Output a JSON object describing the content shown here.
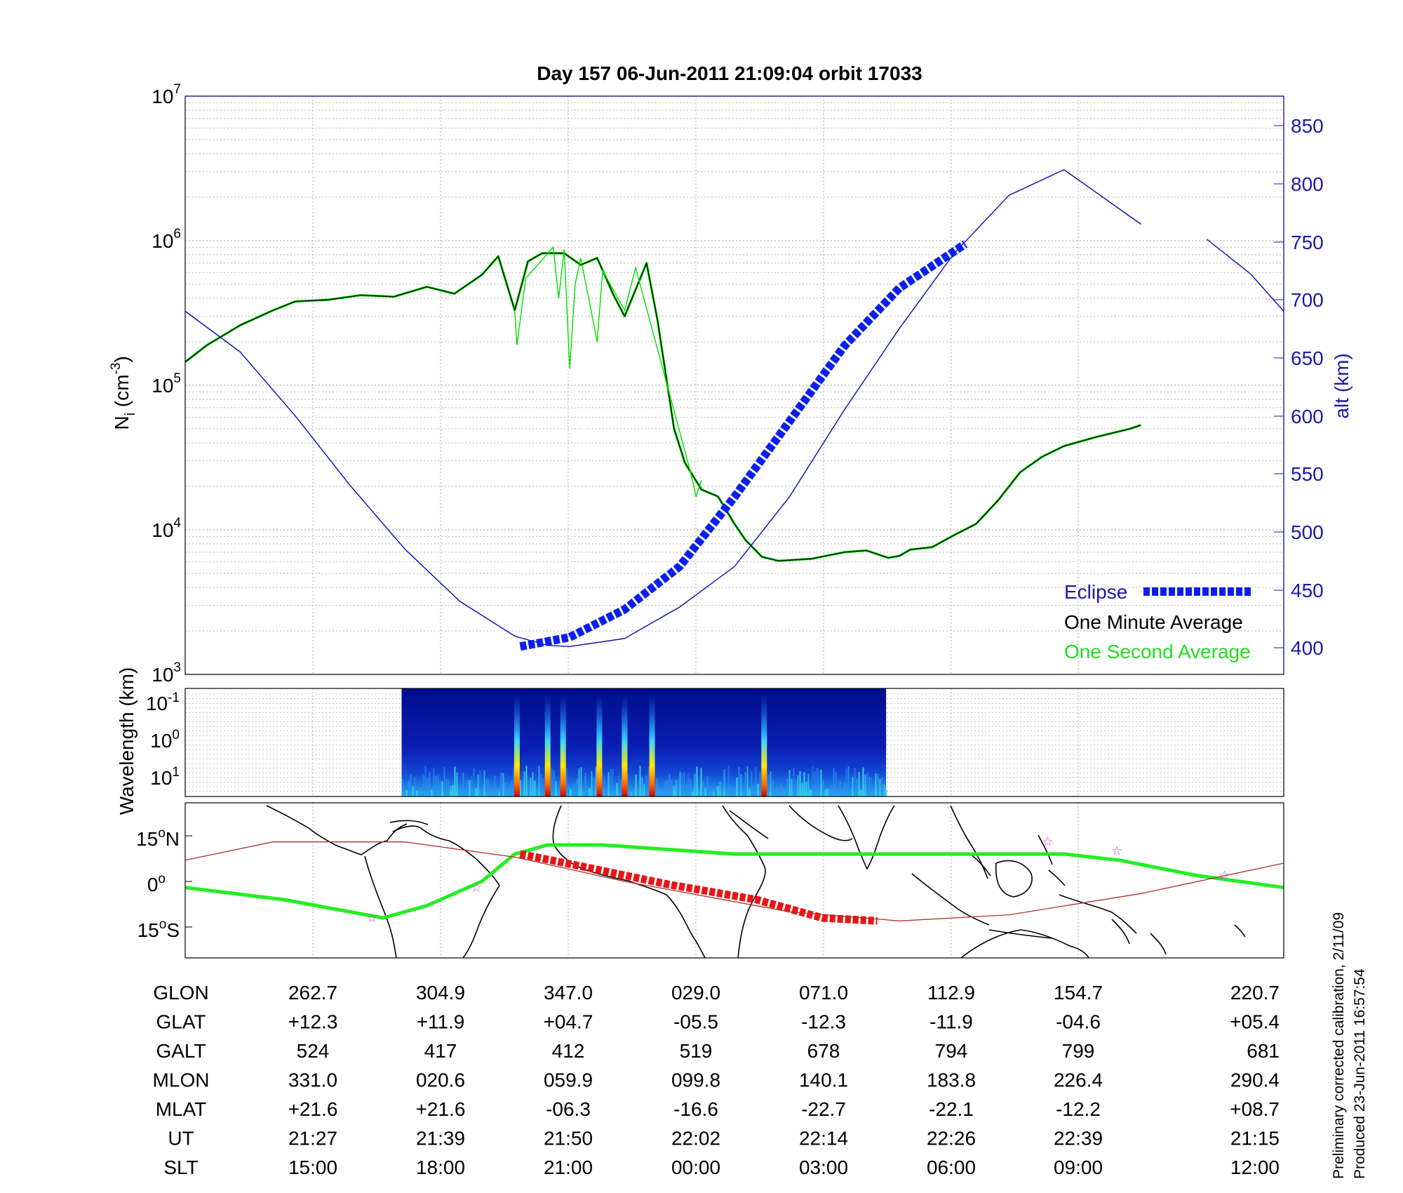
{
  "title": "Day 157  06-Jun-2011 21:09:04   orbit 17033",
  "colors": {
    "density_minute": "#000000",
    "density_second": "#00dd00",
    "altitude": "#0b0bb0",
    "eclipse": "#0a1ef0",
    "map_orbit": "#22ee22",
    "map_eclipse": "#ee1111",
    "map_magnetic_equator": "#b03030",
    "map_marker": "#cc44cc"
  },
  "top_panel": {
    "ylabel": "N",
    "ylabel_sub": "i",
    "ylabel_unit": "(cm",
    "ylabel_unit_sup": "-3",
    "ylabel_unit_close": ")",
    "y_ticks": [
      {
        "base": "10",
        "exp": "7"
      },
      {
        "base": "10",
        "exp": "6"
      },
      {
        "base": "10",
        "exp": "5"
      },
      {
        "base": "10",
        "exp": "4"
      },
      {
        "base": "10",
        "exp": "3"
      }
    ],
    "y2label": "alt (km)",
    "y2_ticks": [
      "850",
      "800",
      "750",
      "700",
      "650",
      "600",
      "550",
      "500",
      "450",
      "400"
    ]
  },
  "legend": {
    "eclipse": "Eclipse",
    "minute": "One Minute Average",
    "second": "One Second Average"
  },
  "spectrogram": {
    "ylabel": "Wavelength (km)",
    "y_ticks": [
      {
        "base": "10",
        "exp": "-1"
      },
      {
        "base": "10",
        "exp": "0"
      },
      {
        "base": "10",
        "exp": "1"
      }
    ]
  },
  "map_panel": {
    "lat_ticks": [
      {
        "value": "15",
        "deg": "o",
        "hemi": "N"
      },
      {
        "value": "0",
        "deg": "o",
        "hemi": ""
      },
      {
        "value": "15",
        "deg": "o",
        "hemi": "S"
      }
    ]
  },
  "table": {
    "row_labels": [
      "GLON",
      "GLAT",
      "GALT",
      "MLON",
      "MLAT",
      "UT",
      "SLT"
    ],
    "columns": [
      [
        "262.7",
        "+12.3",
        "524",
        "331.0",
        "+21.6",
        "21:27",
        "15:00"
      ],
      [
        "304.9",
        "+11.9",
        "417",
        "020.6",
        "+21.6",
        "21:39",
        "18:00"
      ],
      [
        "347.0",
        "+04.7",
        "412",
        "059.9",
        "-06.3",
        "21:50",
        "21:00"
      ],
      [
        "029.0",
        "-05.5",
        "519",
        "099.8",
        "-16.6",
        "22:02",
        "00:00"
      ],
      [
        "071.0",
        "-12.3",
        "678",
        "140.1",
        "-22.7",
        "22:14",
        "03:00"
      ],
      [
        "112.9",
        "-11.9",
        "794",
        "183.8",
        "-22.1",
        "22:26",
        "06:00"
      ],
      [
        "154.7",
        "-04.6",
        "799",
        "226.4",
        "-12.2",
        "22:39",
        "09:00"
      ],
      [
        "220.7",
        "+05.4",
        "681",
        "290.4",
        "+08.7",
        "21:15",
        "12:00"
      ]
    ]
  },
  "footnote_1": "Preliminary corrected calibration, 2/11/09",
  "footnote_2": "Produced 23-Jun-2011 16:57:54",
  "chart_data": [
    {
      "type": "line",
      "title": "Day 157  06-Jun-2011 21:09:04   orbit 17033",
      "xlabel": "",
      "ylabel": "Ni (cm-3)",
      "y_scale": "log",
      "ylim": [
        1000,
        10000000
      ],
      "x_unit": "fraction of orbit plot width",
      "xlim": [
        0,
        1
      ],
      "grid": true,
      "legend_position": "bottom-right",
      "series": [
        {
          "name": "One Minute Average",
          "axis": "left",
          "x": [
            0.0,
            0.02,
            0.05,
            0.08,
            0.1,
            0.13,
            0.16,
            0.19,
            0.22,
            0.245,
            0.27,
            0.285,
            0.3,
            0.312,
            0.325,
            0.345,
            0.36,
            0.375,
            0.39,
            0.4,
            0.42,
            0.43,
            0.445,
            0.455,
            0.47,
            0.485,
            0.5,
            0.51,
            0.525,
            0.54,
            0.57,
            0.6,
            0.62,
            0.64,
            0.65,
            0.66,
            0.68,
            0.7,
            0.72,
            0.74,
            0.76,
            0.78,
            0.8,
            0.83,
            0.86,
            0.87
          ],
          "y": [
            145000,
            190000,
            260000,
            330000,
            380000,
            390000,
            420000,
            410000,
            480000,
            430000,
            580000,
            780000,
            330000,
            720000,
            820000,
            820000,
            680000,
            760000,
            420000,
            300000,
            700000,
            280000,
            50000,
            29000,
            19000,
            17000,
            11000,
            8500,
            6500,
            6100,
            6300,
            7000,
            7200,
            6400,
            6600,
            7300,
            7600,
            9200,
            11000,
            16000,
            25000,
            32000,
            38000,
            44000,
            50000,
            53000
          ]
        },
        {
          "name": "One Second Average",
          "axis": "left",
          "x": [
            0.3,
            0.302,
            0.31,
            0.335,
            0.34,
            0.345,
            0.35,
            0.355,
            0.36,
            0.375,
            0.38,
            0.4,
            0.41,
            0.46,
            0.465,
            0.47
          ],
          "y": [
            330000,
            190000,
            550000,
            900000,
            400000,
            870000,
            130000,
            500000,
            760000,
            200000,
            620000,
            330000,
            650000,
            25000,
            17000,
            22000
          ]
        },
        {
          "name": "Altitude",
          "axis": "right",
          "unit": "km",
          "x": [
            0.0,
            0.05,
            0.1,
            0.15,
            0.2,
            0.25,
            0.3,
            0.33,
            0.35,
            0.4,
            0.45,
            0.5,
            0.55,
            0.6,
            0.65,
            0.7,
            0.75,
            0.8,
            0.87
          ],
          "y": [
            690,
            655,
            600,
            540,
            485,
            440,
            410,
            402,
            401,
            408,
            435,
            470,
            530,
            605,
            675,
            740,
            790,
            812,
            765
          ]
        },
        {
          "name": "Altitude (segment 2)",
          "axis": "right",
          "unit": "km",
          "x": [
            0.93,
            0.97,
            1.0
          ],
          "y": [
            752,
            722,
            690
          ]
        },
        {
          "name": "Eclipse",
          "axis": "right",
          "unit": "km",
          "x": [
            0.305,
            0.35,
            0.4,
            0.45,
            0.5,
            0.55,
            0.6,
            0.65,
            0.71
          ],
          "y": [
            401,
            409,
            433,
            470,
            530,
            595,
            660,
            710,
            748
          ]
        }
      ]
    },
    {
      "type": "heatmap",
      "ylabel": "Wavelength (km)",
      "y_scale": "log",
      "x_unit": "fraction of orbit plot width",
      "data_extent_x": [
        0.197,
        0.638
      ],
      "intense_bursts_x": [
        0.302,
        0.33,
        0.344,
        0.377,
        0.4,
        0.425,
        0.527
      ]
    },
    {
      "type": "line",
      "x_unit": "fraction of map width (longitude)",
      "y_unit": "latitude (degrees)",
      "lat_ticks": [
        15,
        0,
        -15
      ],
      "series": [
        {
          "name": "Orbit track",
          "x": [
            0.0,
            0.09,
            0.18,
            0.22,
            0.27,
            0.3,
            0.33,
            0.38,
            0.5,
            0.6,
            0.7,
            0.8,
            0.85,
            0.92,
            1.0
          ],
          "y": [
            -2,
            -6,
            -12,
            -8,
            0,
            9,
            12,
            12,
            9,
            9,
            9,
            9,
            7,
            2,
            -2
          ]
        },
        {
          "name": "Eclipse (map)",
          "x": [
            0.305,
            0.36,
            0.44,
            0.52,
            0.58,
            0.63
          ],
          "y": [
            9,
            5,
            -1,
            -6,
            -12,
            -13
          ]
        },
        {
          "name": "Magnetic equator",
          "x": [
            0.0,
            0.08,
            0.2,
            0.3,
            0.4,
            0.55,
            0.65,
            0.75,
            0.87,
            1.0
          ],
          "y": [
            7,
            13,
            13,
            8,
            0,
            -10,
            -13,
            -11,
            -4,
            6
          ]
        }
      ]
    }
  ]
}
